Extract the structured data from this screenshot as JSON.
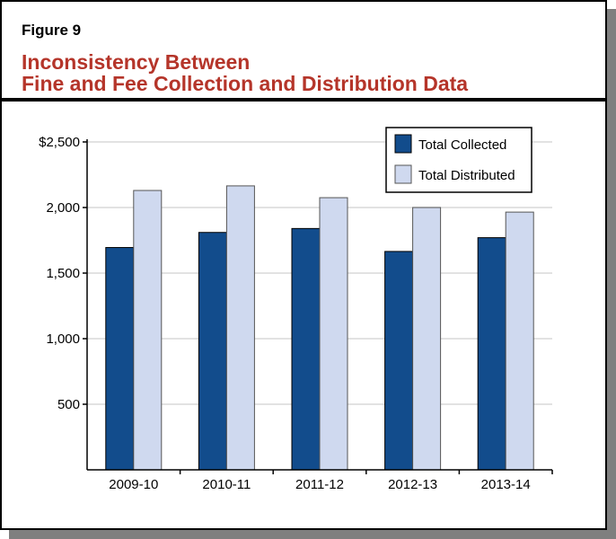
{
  "figure_label": "Figure 9",
  "title_line1": "Inconsistency Between",
  "title_line2": "Fine and Fee Collection and Distribution Data",
  "chart_data": {
    "type": "bar",
    "categories": [
      "2009-10",
      "2010-11",
      "2011-12",
      "2012-13",
      "2013-14"
    ],
    "series": [
      {
        "name": "Total Collected",
        "color": "#124c8c",
        "values": [
          1695,
          1810,
          1840,
          1665,
          1770
        ]
      },
      {
        "name": "Total Distributed",
        "color": "#cfd9ef",
        "values": [
          2130,
          2165,
          2075,
          2000,
          1965
        ]
      }
    ],
    "yticks": [
      500,
      1000,
      1500,
      2000,
      2500
    ],
    "ytick_labels": [
      "500",
      "1,000",
      "1,500",
      "2,000",
      "$2,500"
    ],
    "ylim": [
      0,
      2500
    ],
    "grid": true,
    "legend": "top-right"
  }
}
